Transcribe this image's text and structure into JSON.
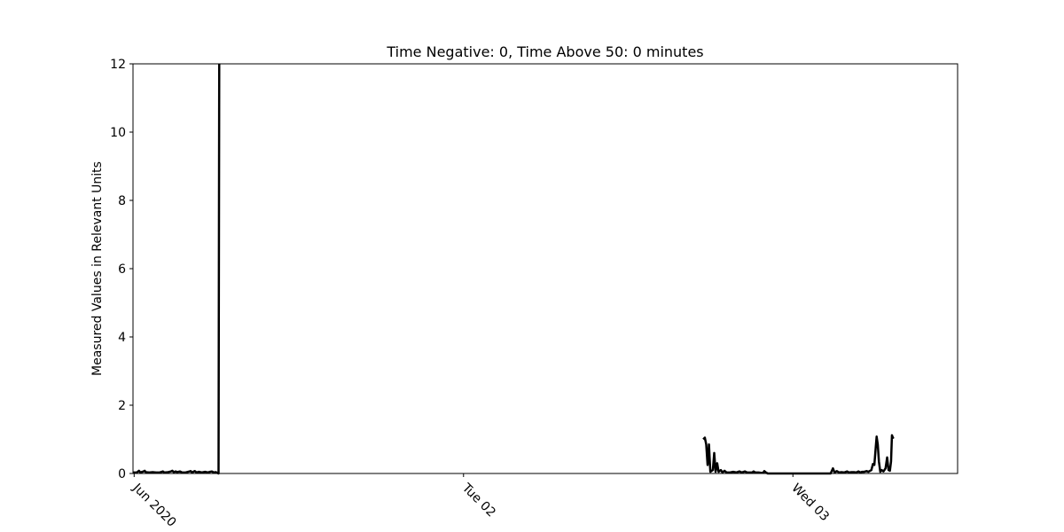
{
  "chart_data": {
    "type": "line",
    "title": "Time Negative: 0, Time Above 50: 0 minutes",
    "xlabel": "",
    "ylabel": "Measured Values in Relevant Units",
    "x_axis_type": "time",
    "x_tick_labels": [
      {
        "label": "Jun 2020",
        "at": "2020-06-01 00:00"
      },
      {
        "label": "Tue 02",
        "at": "2020-06-02 00:00"
      },
      {
        "label": "Wed 03",
        "at": "2020-06-03 00:00"
      }
    ],
    "xlim": [
      "2019-12-31 23:55",
      "2020-06-03 12:00"
    ],
    "y_ticks": [
      0,
      2,
      4,
      6,
      8,
      10,
      12
    ],
    "ylim": [
      0,
      12
    ],
    "grid": false,
    "line_color": "#000000",
    "series": [
      {
        "segments": [
          [
            [
              "2020-05-31 23:55",
              0.03
            ],
            [
              "2020-06-01 00:12",
              0.03
            ],
            [
              "2020-06-01 00:21",
              0.08
            ],
            [
              "2020-06-01 00:27",
              0.03
            ],
            [
              "2020-06-01 00:41",
              0.06
            ],
            [
              "2020-06-01 00:46",
              0.08
            ],
            [
              "2020-06-01 00:51",
              0.04
            ],
            [
              "2020-06-01 01:06",
              0.03
            ],
            [
              "2020-06-01 01:21",
              0.04
            ],
            [
              "2020-06-01 01:36",
              0.03
            ],
            [
              "2020-06-01 01:52",
              0.03
            ],
            [
              "2020-06-01 02:06",
              0.06
            ],
            [
              "2020-06-01 02:12",
              0.03
            ],
            [
              "2020-06-01 02:28",
              0.04
            ],
            [
              "2020-06-01 02:41",
              0.06
            ],
            [
              "2020-06-01 02:47",
              0.08
            ],
            [
              "2020-06-01 02:53",
              0.04
            ],
            [
              "2020-06-01 03:02",
              0.06
            ],
            [
              "2020-06-01 03:08",
              0.04
            ],
            [
              "2020-06-01 03:20",
              0.06
            ],
            [
              "2020-06-01 03:30",
              0.03
            ],
            [
              "2020-06-01 03:45",
              0.03
            ],
            [
              "2020-06-01 04:02",
              0.06
            ],
            [
              "2020-06-01 04:07",
              0.07
            ],
            [
              "2020-06-01 04:13",
              0.03
            ],
            [
              "2020-06-01 04:25",
              0.07
            ],
            [
              "2020-06-01 04:33",
              0.03
            ],
            [
              "2020-06-01 04:43",
              0.05
            ],
            [
              "2020-06-01 04:56",
              0.03
            ],
            [
              "2020-06-01 05:10",
              0.05
            ],
            [
              "2020-06-01 05:22",
              0.03
            ],
            [
              "2020-06-01 05:32",
              0.05
            ],
            [
              "2020-06-01 05:40",
              0.06
            ],
            [
              "2020-06-01 05:48",
              0.03
            ],
            [
              "2020-06-01 05:56",
              0.04
            ],
            [
              "2020-06-01 06:00",
              0.03
            ],
            [
              "2020-06-01 06:09",
              0.0
            ],
            [
              "2020-06-01 06:12",
              12.0
            ]
          ],
          [
            [
              "2020-06-02 17:28",
              1.0
            ],
            [
              "2020-06-02 17:35",
              1.05
            ],
            [
              "2020-06-02 17:41",
              0.85
            ],
            [
              "2020-06-02 17:47",
              0.25
            ],
            [
              "2020-06-02 17:53",
              0.85
            ],
            [
              "2020-06-02 17:59",
              0.05
            ],
            [
              "2020-06-02 18:10",
              0.1
            ],
            [
              "2020-06-02 18:16",
              0.6
            ],
            [
              "2020-06-02 18:22",
              0.05
            ],
            [
              "2020-06-02 18:29",
              0.3
            ],
            [
              "2020-06-02 18:35",
              0.05
            ],
            [
              "2020-06-02 18:45",
              0.1
            ],
            [
              "2020-06-02 18:52",
              0.03
            ],
            [
              "2020-06-02 19:01",
              0.08
            ],
            [
              "2020-06-02 19:10",
              0.03
            ],
            [
              "2020-06-02 19:25",
              0.03
            ],
            [
              "2020-06-02 19:39",
              0.05
            ],
            [
              "2020-06-02 19:53",
              0.03
            ],
            [
              "2020-06-02 20:06",
              0.06
            ],
            [
              "2020-06-02 20:17",
              0.03
            ],
            [
              "2020-06-02 20:30",
              0.06
            ],
            [
              "2020-06-02 20:40",
              0.03
            ],
            [
              "2020-06-02 20:53",
              0.03
            ],
            [
              "2020-06-02 21:02",
              0.03
            ],
            [
              "2020-06-02 21:08",
              0.06
            ],
            [
              "2020-06-02 21:15",
              0.03
            ],
            [
              "2020-06-02 21:30",
              0.03
            ],
            [
              "2020-06-02 21:40",
              0.02
            ],
            [
              "2020-06-02 21:50",
              0.02
            ],
            [
              "2020-06-02 21:55",
              0.07
            ],
            [
              "2020-06-02 22:02",
              0.03
            ],
            [
              "2020-06-02 22:10",
              0.0
            ],
            [
              "2020-06-02 22:45",
              0.0
            ],
            [
              "2020-06-02 23:35",
              0.0
            ],
            [
              "2020-06-03 00:30",
              0.0
            ],
            [
              "2020-06-03 01:40",
              0.0
            ],
            [
              "2020-06-03 02:45",
              0.0
            ],
            [
              "2020-06-03 02:55",
              0.15
            ],
            [
              "2020-06-03 03:02",
              0.03
            ],
            [
              "2020-06-03 03:12",
              0.07
            ],
            [
              "2020-06-03 03:22",
              0.03
            ],
            [
              "2020-06-03 03:32",
              0.04
            ],
            [
              "2020-06-03 03:45",
              0.03
            ],
            [
              "2020-06-03 03:57",
              0.06
            ],
            [
              "2020-06-03 04:05",
              0.03
            ],
            [
              "2020-06-03 04:16",
              0.04
            ],
            [
              "2020-06-03 04:27",
              0.04
            ],
            [
              "2020-06-03 04:37",
              0.03
            ],
            [
              "2020-06-03 04:46",
              0.06
            ],
            [
              "2020-06-03 04:56",
              0.03
            ],
            [
              "2020-06-03 05:02",
              0.05
            ],
            [
              "2020-06-03 05:12",
              0.05
            ],
            [
              "2020-06-03 05:22",
              0.07
            ],
            [
              "2020-06-03 05:30",
              0.05
            ],
            [
              "2020-06-03 05:43",
              0.1
            ],
            [
              "2020-06-03 05:50",
              0.28
            ],
            [
              "2020-06-03 05:56",
              0.25
            ],
            [
              "2020-06-03 06:02",
              0.75
            ],
            [
              "2020-06-03 06:06",
              1.08
            ],
            [
              "2020-06-03 06:11",
              0.85
            ],
            [
              "2020-06-03 06:16",
              0.35
            ],
            [
              "2020-06-03 06:22",
              0.05
            ],
            [
              "2020-06-03 06:28",
              0.1
            ],
            [
              "2020-06-03 06:36",
              0.06
            ],
            [
              "2020-06-03 06:45",
              0.15
            ],
            [
              "2020-06-03 06:52",
              0.47
            ],
            [
              "2020-06-03 06:58",
              0.1
            ],
            [
              "2020-06-03 07:04",
              0.08
            ],
            [
              "2020-06-03 07:09",
              0.35
            ],
            [
              "2020-06-03 07:13",
              1.12
            ],
            [
              "2020-06-03 07:17",
              1.05
            ],
            [
              "2020-06-03 07:20",
              1.02
            ]
          ]
        ]
      }
    ]
  }
}
